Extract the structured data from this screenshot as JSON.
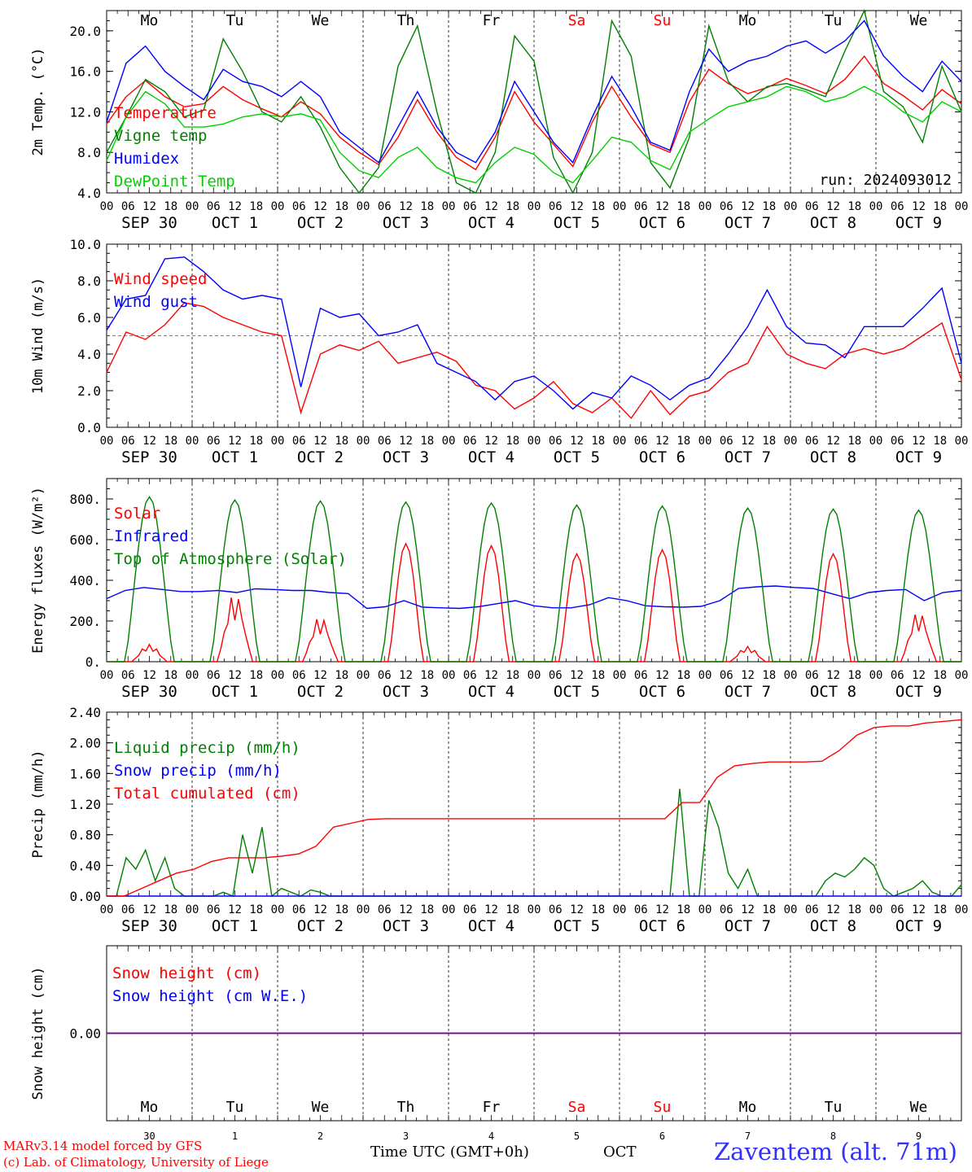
{
  "header": {
    "run": "run: 2024093012"
  },
  "days": {
    "top_labels": [
      "Mo",
      "Tu",
      "We",
      "Th",
      "Fr",
      "Sa",
      "Su",
      "Mo",
      "Tu",
      "We"
    ],
    "weekend_index": [
      5,
      6
    ],
    "weekend_color": "#ff0000",
    "date_labels": [
      "SEP 30",
      "OCT  1",
      "OCT  2",
      "OCT  3",
      "OCT  4",
      "OCT  5",
      "OCT  6",
      "OCT  7",
      "OCT  8",
      "OCT  9"
    ],
    "hour_ticks": [
      "00",
      "06",
      "12",
      "18"
    ],
    "bottom_day_numbers": [
      "30",
      "1",
      "2",
      "3",
      "4",
      "5",
      "6",
      "7",
      "8",
      "9"
    ]
  },
  "footer": {
    "credit1": "MARv3.14 model forced by GFS",
    "credit2": "(c) Lab. of Climatology, University of Liege",
    "time_label": "Time UTC (GMT+0h)",
    "month_label": "OCT",
    "station": "Zaventem (alt. 71m)"
  },
  "colors": {
    "red": "#ff0000",
    "green": "#008000",
    "blue": "#0000ff",
    "lightgreen": "#00d000",
    "purple": "#800080"
  },
  "chart_data": [
    {
      "type": "line",
      "ylabel": "2m Temp. (°C)",
      "ylim": [
        4.0,
        22.0
      ],
      "yticks": [
        4.0,
        8.0,
        12.0,
        16.0,
        20.0
      ],
      "ytick_labels": [
        "4.0",
        "8.0",
        "12.0",
        "16.0",
        "20.0"
      ],
      "x_hours_step": 6,
      "grid": "dotted day separators",
      "legend_position": "left",
      "series": [
        {
          "name": "Temperature",
          "color": "#ff0000",
          "values": [
            10.8,
            13.5,
            15.1,
            13.5,
            12.5,
            12.8,
            14.5,
            13.2,
            12.3,
            11.5,
            13.0,
            11.8,
            9.5,
            8.0,
            6.8,
            9.5,
            13.2,
            10.0,
            7.5,
            6.3,
            9.5,
            14.0,
            11.0,
            8.8,
            6.6,
            11.0,
            14.5,
            11.5,
            8.8,
            8.0,
            13.0,
            16.2,
            14.8,
            13.8,
            14.4,
            15.3,
            14.6,
            13.8,
            15.2,
            17.5,
            14.8,
            13.6,
            12.2,
            14.2,
            12.8
          ]
        },
        {
          "name": "Vigne temp",
          "color": "#008000",
          "values": [
            8.0,
            11.5,
            15.2,
            14.0,
            11.5,
            12.2,
            19.2,
            16.0,
            12.0,
            11.0,
            13.5,
            10.5,
            6.5,
            3.5,
            6.5,
            16.5,
            20.5,
            12.0,
            5.0,
            4.0,
            8.0,
            19.5,
            17.0,
            7.5,
            3.0,
            8.0,
            21.0,
            17.5,
            7.0,
            4.5,
            9.5,
            20.5,
            15.0,
            13.0,
            14.5,
            14.8,
            14.2,
            13.5,
            18.0,
            22.0,
            14.0,
            12.5,
            9.0,
            16.5,
            12.0
          ]
        },
        {
          "name": "Humidex",
          "color": "#0000ff",
          "values": [
            11.0,
            16.8,
            18.5,
            16.0,
            14.5,
            13.2,
            16.2,
            15.0,
            14.5,
            13.5,
            15.0,
            13.5,
            10.0,
            8.5,
            7.0,
            10.5,
            14.0,
            10.5,
            8.0,
            7.0,
            10.0,
            15.0,
            12.0,
            9.0,
            7.0,
            11.5,
            15.5,
            12.5,
            9.0,
            8.2,
            14.0,
            18.2,
            16.0,
            17.0,
            17.5,
            18.5,
            19.0,
            17.8,
            19.0,
            21.0,
            17.5,
            15.5,
            14.0,
            17.0,
            15.0
          ]
        },
        {
          "name": "DewPoint Temp",
          "color": "#00d000",
          "values": [
            7.2,
            11.5,
            14.0,
            12.8,
            10.5,
            10.5,
            10.8,
            11.5,
            11.8,
            11.5,
            11.8,
            11.2,
            8.0,
            6.2,
            5.5,
            7.5,
            8.5,
            6.5,
            5.5,
            5.0,
            7.0,
            8.5,
            7.8,
            6.0,
            5.0,
            7.2,
            9.5,
            9.0,
            7.2,
            6.3,
            10.0,
            11.3,
            12.5,
            13.0,
            13.5,
            14.5,
            14.0,
            13.0,
            13.5,
            14.5,
            13.5,
            12.0,
            11.0,
            13.0,
            12.0
          ]
        }
      ]
    },
    {
      "type": "line",
      "ylabel": "10m Wind (m/s)",
      "ylim": [
        0.0,
        10.0
      ],
      "yticks": [
        0.0,
        2.0,
        4.0,
        6.0,
        8.0,
        10.0
      ],
      "ytick_labels": [
        "0.0",
        "2.0",
        "4.0",
        "6.0",
        "8.0",
        "10.0"
      ],
      "reference_line": 5.0,
      "legend_position": "left",
      "series": [
        {
          "name": "Wind speed",
          "color": "#ff0000",
          "values": [
            3.0,
            5.2,
            4.8,
            5.6,
            6.8,
            6.6,
            6.0,
            5.6,
            5.2,
            5.0,
            0.8,
            4.0,
            4.5,
            4.2,
            4.7,
            3.5,
            3.8,
            4.1,
            3.6,
            2.3,
            2.0,
            1.0,
            1.6,
            2.5,
            1.3,
            0.8,
            1.6,
            0.5,
            2.0,
            0.7,
            1.7,
            2.0,
            3.0,
            3.5,
            5.5,
            4.0,
            3.5,
            3.2,
            4.0,
            4.3,
            4.0,
            4.3,
            5.0,
            5.7,
            2.6
          ]
        },
        {
          "name": "Wind gust",
          "color": "#0000ff",
          "values": [
            5.3,
            7.0,
            7.2,
            9.2,
            9.3,
            8.5,
            7.5,
            7.0,
            7.2,
            7.0,
            2.2,
            6.5,
            6.0,
            6.2,
            5.0,
            5.2,
            5.6,
            3.5,
            3.0,
            2.5,
            1.5,
            2.5,
            2.8,
            2.0,
            1.0,
            1.9,
            1.6,
            2.8,
            2.3,
            1.5,
            2.3,
            2.7,
            4.0,
            5.5,
            7.5,
            5.5,
            4.6,
            4.5,
            3.8,
            5.5,
            5.5,
            5.5,
            6.5,
            7.6,
            3.5
          ]
        }
      ]
    },
    {
      "type": "line",
      "ylabel": "Energy fluxes (W/m²)",
      "ylim": [
        0,
        900
      ],
      "yticks": [
        0,
        200,
        400,
        600,
        800
      ],
      "ytick_labels": [
        "0.",
        "200.",
        "400.",
        "600.",
        "800."
      ],
      "legend_position": "left",
      "series": [
        {
          "name": "Solar",
          "color": "#ff0000",
          "peaks": [
            85,
            340,
            225,
            580,
            570,
            530,
            550,
            75,
            530,
            250
          ]
        },
        {
          "name": "Infrared",
          "color": "#0000ff",
          "values": [
            310,
            350,
            365,
            355,
            345,
            345,
            350,
            340,
            358,
            355,
            350,
            350,
            340,
            335,
            262,
            270,
            300,
            268,
            265,
            262,
            270,
            285,
            300,
            275,
            265,
            265,
            280,
            315,
            300,
            275,
            270,
            268,
            272,
            300,
            360,
            368,
            372,
            365,
            360,
            335,
            310,
            340,
            350,
            355,
            300,
            340,
            350
          ]
        },
        {
          "name": "Top of Atmosphere (Solar)",
          "color": "#008000",
          "peaks": [
            810,
            795,
            790,
            785,
            780,
            770,
            765,
            755,
            750,
            745
          ]
        }
      ]
    },
    {
      "type": "line",
      "ylabel": "Precip (mm/h)",
      "ylim": [
        0.0,
        2.4
      ],
      "yticks": [
        0.0,
        0.4,
        0.8,
        1.2,
        1.6,
        2.0,
        2.4
      ],
      "ytick_labels": [
        "0.00",
        "0.40",
        "0.80",
        "1.20",
        "1.60",
        "2.00",
        "2.40"
      ],
      "legend_position": "left",
      "series": [
        {
          "name": "Liquid precip (mm/h)",
          "color": "#008000",
          "values": [
            0.0,
            0.0,
            0.5,
            0.35,
            0.6,
            0.2,
            0.5,
            0.1,
            0.0,
            0.0,
            0.0,
            0.0,
            0.05,
            0.0,
            0.8,
            0.3,
            0.9,
            0.0,
            0.1,
            0.05,
            0.0,
            0.08,
            0.05,
            0.0,
            0.0,
            0.0,
            0.0,
            0.0,
            0.0,
            0.0,
            0.0,
            0.0,
            0.0,
            0.0,
            0.0,
            0.0,
            0.0,
            0.0,
            0.0,
            0.0,
            0.0,
            0.0,
            0.0,
            0.0,
            0.0,
            0.0,
            0.0,
            0.0,
            0.0,
            0.0,
            0.0,
            0.0,
            0.0,
            0.0,
            0.0,
            0.0,
            0.0,
            0.0,
            0.0,
            1.4,
            0.0,
            0.0,
            1.25,
            0.9,
            0.3,
            0.1,
            0.35,
            0.0,
            0.0,
            0.0,
            0.0,
            0.0,
            0.0,
            0.0,
            0.2,
            0.3,
            0.25,
            0.35,
            0.5,
            0.4,
            0.1,
            0.0,
            0.05,
            0.1,
            0.2,
            0.05,
            0.0,
            0.0,
            0.15
          ]
        },
        {
          "name": "Snow precip (mm/h)",
          "color": "#0000ff",
          "values": [
            0,
            0
          ]
        },
        {
          "name": "Total cumulated (cm)",
          "color": "#ff0000",
          "values": [
            0.0,
            0.0,
            0.1,
            0.2,
            0.3,
            0.35,
            0.45,
            0.5,
            0.5,
            0.5,
            0.52,
            0.55,
            0.65,
            0.9,
            0.95,
            1.0,
            1.01,
            1.01,
            1.01,
            1.01,
            1.01,
            1.01,
            1.01,
            1.01,
            1.01,
            1.01,
            1.01,
            1.01,
            1.01,
            1.01,
            1.01,
            1.01,
            1.01,
            1.22,
            1.22,
            1.55,
            1.7,
            1.73,
            1.75,
            1.75,
            1.75,
            1.76,
            1.9,
            2.1,
            2.2,
            2.22,
            2.22,
            2.26,
            2.28,
            2.3
          ]
        }
      ]
    },
    {
      "type": "line",
      "ylabel": "Snow height (cm)",
      "ylim": [
        -1.0,
        1.0
      ],
      "yticks": [
        0.0
      ],
      "ytick_labels": [
        "0.00"
      ],
      "legend_position": "left",
      "series": [
        {
          "name": "Snow height (cm)",
          "color": "#ff0000",
          "values": [
            0,
            0
          ]
        },
        {
          "name": "Snow height (cm W.E.)",
          "color": "#0000ff",
          "values": [
            0,
            0
          ]
        }
      ]
    }
  ]
}
